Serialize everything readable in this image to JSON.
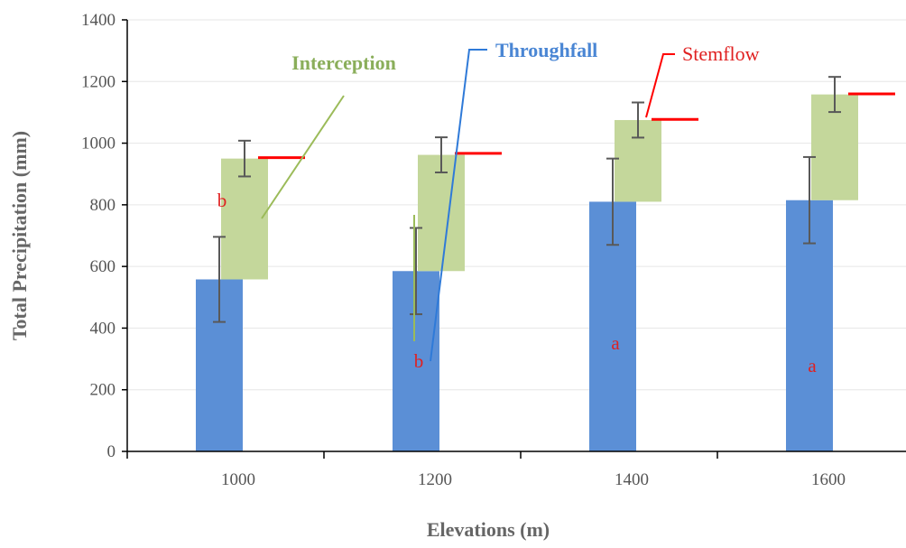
{
  "chart_data": {
    "type": "bar",
    "xlabel": "Elevations (m)",
    "ylabel": "Total Precipitation (mm)",
    "ylim": [
      0,
      1400
    ],
    "yticks": [
      "0",
      "200",
      "400",
      "600",
      "800",
      "1000",
      "1200",
      "1400"
    ],
    "categories": [
      "1000",
      "1200",
      "1400",
      "1600"
    ],
    "grid": true,
    "series": [
      {
        "name": "Throughfall",
        "color": "#5b8fd6",
        "values": [
          558,
          585,
          810,
          815
        ],
        "error": [
          138,
          140,
          140,
          140
        ],
        "significance": [
          "b",
          "b",
          "a",
          "a"
        ]
      },
      {
        "name": "Interception",
        "color": "#c4d79b",
        "base": [
          558,
          585,
          810,
          815
        ],
        "top": [
          950,
          962,
          1075,
          1158
        ],
        "error": [
          58,
          57,
          57,
          57
        ]
      },
      {
        "name": "Stemflow",
        "color": "#ff0000",
        "values": [
          953,
          967,
          1077,
          1160
        ]
      }
    ]
  }
}
